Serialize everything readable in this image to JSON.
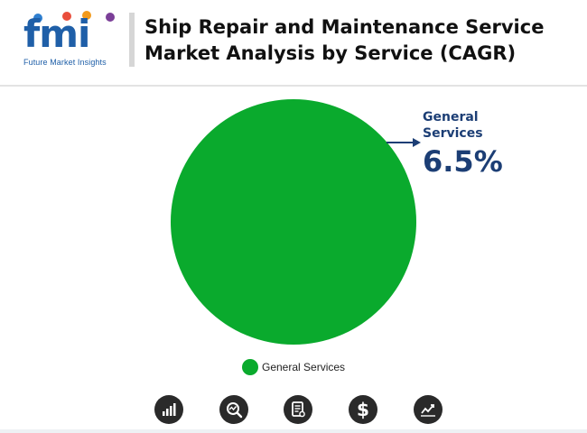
{
  "brand": {
    "logo_text": "fmi",
    "tagline": "Future Market Insights",
    "logo_color": "#1f5fa8"
  },
  "header": {
    "title_line1": "Ship Repair and Maintenance Service",
    "title_line2": "Market Analysis by Service (CAGR)"
  },
  "chart_data": {
    "type": "pie",
    "title": "Ship Repair and Maintenance Service Market Analysis by Service (CAGR)",
    "categories": [
      "General Services"
    ],
    "values": [
      6.5
    ],
    "unit": "%",
    "colors": [
      "#0aaa2d"
    ],
    "legend": {
      "placement": "bottom-center",
      "entries": [
        "General Services"
      ]
    },
    "annotations": [
      {
        "category": "General Services",
        "label_line1": "General",
        "label_line2": "Services",
        "value_text": "6.5%"
      }
    ]
  },
  "icons": [
    {
      "name": "growth-chart-icon"
    },
    {
      "name": "magnify-analysis-icon"
    },
    {
      "name": "report-document-icon"
    },
    {
      "name": "dollar-icon"
    },
    {
      "name": "trend-line-icon"
    }
  ],
  "colors": {
    "accent": "#1c3e75",
    "slice": "#0aaa2d",
    "icon_bg": "#2a2a2a"
  }
}
